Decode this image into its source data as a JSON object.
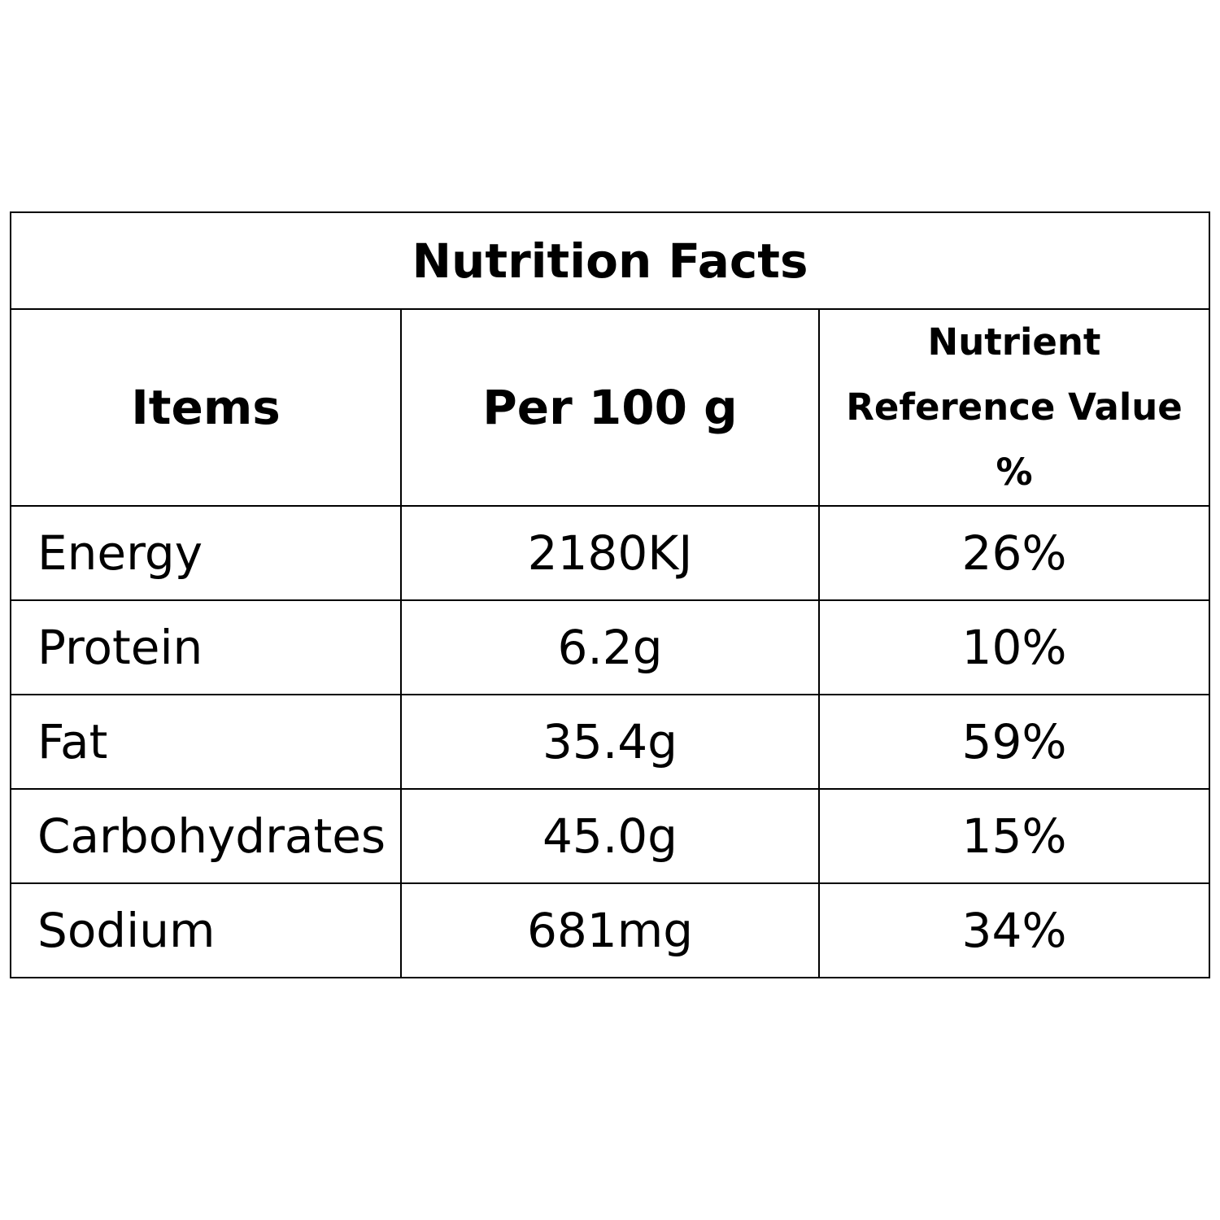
{
  "title": "Nutrition Facts",
  "headers": {
    "items": "Items",
    "per": "Per 100 g",
    "nrv_line1": "Nutrient",
    "nrv_line2": "Reference Value",
    "nrv_line3": "%"
  },
  "rows": [
    {
      "item": "Energy",
      "per": "2180KJ",
      "nrv": "26%"
    },
    {
      "item": "Protein",
      "per": "6.2g",
      "nrv": "10%"
    },
    {
      "item": "Fat",
      "per": "35.4g",
      "nrv": "59%"
    },
    {
      "item": "Carbohydrates",
      "per": "45.0g",
      "nrv": "15%"
    },
    {
      "item": "Sodium",
      "per": "681mg",
      "nrv": "34%"
    }
  ]
}
